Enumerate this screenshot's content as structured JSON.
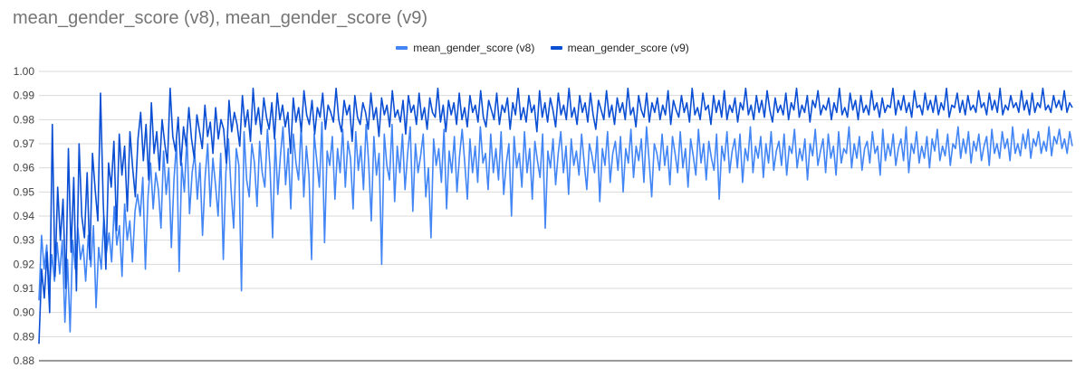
{
  "chart_data": {
    "type": "line",
    "title": "mean_gender_score (v8), mean_gender_score (v9)",
    "xlabel": "",
    "ylabel": "",
    "ylim": [
      0.88,
      1.0
    ],
    "yticks": [
      "1.00",
      "0.99",
      "0.98",
      "0.97",
      "0.96",
      "0.95",
      "0.94",
      "0.93",
      "0.92",
      "0.91",
      "0.90",
      "0.89",
      "0.88"
    ],
    "grid": true,
    "legend_position": "top-center",
    "n_points": 400,
    "series": [
      {
        "name": "mean_gender_score (v8)",
        "color": "#4285f4",
        "values": [
          0.905,
          0.932,
          0.918,
          0.928,
          0.91,
          0.924,
          0.913,
          0.929,
          0.916,
          0.93,
          0.896,
          0.922,
          0.892,
          0.93,
          0.918,
          0.935,
          0.922,
          0.928,
          0.913,
          0.932,
          0.919,
          0.936,
          0.902,
          0.927,
          0.918,
          0.94,
          0.925,
          0.933,
          0.921,
          0.944,
          0.928,
          0.936,
          0.915,
          0.945,
          0.93,
          0.938,
          0.921,
          0.942,
          0.949,
          0.94,
          0.956,
          0.918,
          0.948,
          0.962,
          0.943,
          0.958,
          0.951,
          0.935,
          0.967,
          0.949,
          0.96,
          0.927,
          0.955,
          0.971,
          0.917,
          0.962,
          0.95,
          0.973,
          0.941,
          0.958,
          0.966,
          0.947,
          0.962,
          0.932,
          0.956,
          0.97,
          0.944,
          0.964,
          0.953,
          0.94,
          0.966,
          0.922,
          0.958,
          0.972,
          0.951,
          0.935,
          0.968,
          0.961,
          0.909,
          0.975,
          0.955,
          0.948,
          0.97,
          0.962,
          0.944,
          0.971,
          0.958,
          0.952,
          0.976,
          0.96,
          0.931,
          0.972,
          0.949,
          0.965,
          0.977,
          0.953,
          0.968,
          0.943,
          0.974,
          0.962,
          0.955,
          0.978,
          0.948,
          0.969,
          0.957,
          0.922,
          0.974,
          0.963,
          0.952,
          0.979,
          0.929,
          0.967,
          0.961,
          0.973,
          0.947,
          0.968,
          0.958,
          0.976,
          0.952,
          0.971,
          0.964,
          0.943,
          0.975,
          0.959,
          0.969,
          0.951,
          0.978,
          0.962,
          0.938,
          0.973,
          0.957,
          0.966,
          0.92,
          0.974,
          0.961,
          0.955,
          0.978,
          0.946,
          0.969,
          0.958,
          0.974,
          0.951,
          0.966,
          0.977,
          0.942,
          0.97,
          0.958,
          0.965,
          0.974,
          0.948,
          0.96,
          0.931,
          0.972,
          0.961,
          0.968,
          0.954,
          0.976,
          0.943,
          0.967,
          0.958,
          0.973,
          0.95,
          0.965,
          0.976,
          0.962,
          0.947,
          0.972,
          0.958,
          0.969,
          0.954,
          0.977,
          0.962,
          0.966,
          0.951,
          0.974,
          0.958,
          0.968,
          0.955,
          0.975,
          0.949,
          0.962,
          0.97,
          0.94,
          0.973,
          0.96,
          0.966,
          0.952,
          0.975,
          0.958,
          0.968,
          0.947,
          0.971,
          0.963,
          0.956,
          0.974,
          0.935,
          0.967,
          0.96,
          0.972,
          0.953,
          0.966,
          0.975,
          0.958,
          0.969,
          0.949,
          0.972,
          0.961,
          0.967,
          0.957,
          0.974,
          0.962,
          0.951,
          0.97,
          0.965,
          0.958,
          0.973,
          0.946,
          0.968,
          0.961,
          0.975,
          0.954,
          0.966,
          0.971,
          0.959,
          0.973,
          0.95,
          0.968,
          0.962,
          0.976,
          0.956,
          0.969,
          0.963,
          0.972,
          0.954,
          0.977,
          0.963,
          0.948,
          0.97,
          0.966,
          0.959,
          0.974,
          0.961,
          0.969,
          0.953,
          0.973,
          0.966,
          0.958,
          0.975,
          0.96,
          0.968,
          0.952,
          0.972,
          0.965,
          0.957,
          0.976,
          0.962,
          0.97,
          0.955,
          0.971,
          0.964,
          0.959,
          0.974,
          0.947,
          0.969,
          0.963,
          0.975,
          0.958,
          0.967,
          0.972,
          0.96,
          0.974,
          0.954,
          0.968,
          0.963,
          0.977,
          0.958,
          0.969,
          0.964,
          0.973,
          0.956,
          0.97,
          0.962,
          0.975,
          0.959,
          0.967,
          0.971,
          0.961,
          0.974,
          0.957,
          0.969,
          0.966,
          0.976,
          0.96,
          0.968,
          0.963,
          0.972,
          0.955,
          0.97,
          0.965,
          0.976,
          0.961,
          0.967,
          0.972,
          0.958,
          0.974,
          0.964,
          0.969,
          0.957,
          0.975,
          0.962,
          0.968,
          0.966,
          0.977,
          0.96,
          0.97,
          0.964,
          0.973,
          0.959,
          0.968,
          0.971,
          0.962,
          0.975,
          0.966,
          0.969,
          0.957,
          0.976,
          0.963,
          0.97,
          0.965,
          0.974,
          0.961,
          0.968,
          0.972,
          0.963,
          0.977,
          0.958,
          0.97,
          0.966,
          0.975,
          0.962,
          0.969,
          0.964,
          0.973,
          0.96,
          0.972,
          0.967,
          0.976,
          0.963,
          0.969,
          0.965,
          0.974,
          0.961,
          0.97,
          0.968,
          0.977,
          0.964,
          0.972,
          0.966,
          0.975,
          0.962,
          0.971,
          0.967,
          0.974,
          0.963,
          0.969,
          0.973,
          0.961,
          0.976,
          0.966,
          0.97,
          0.964,
          0.975,
          0.968,
          0.972,
          0.963,
          0.977,
          0.966,
          0.97,
          0.965,
          0.974,
          0.968,
          0.976,
          0.964,
          0.972,
          0.969,
          0.975,
          0.966,
          0.971,
          0.967,
          0.977,
          0.965,
          0.973,
          0.97,
          0.976,
          0.968,
          0.972,
          0.966,
          0.975,
          0.969
        ]
      },
      {
        "name": "mean_gender_score (v9)",
        "color": "#0b4fd4",
        "values": [
          0.887,
          0.918,
          0.906,
          0.925,
          0.9,
          0.978,
          0.915,
          0.952,
          0.93,
          0.947,
          0.91,
          0.968,
          0.925,
          0.956,
          0.909,
          0.97,
          0.94,
          0.931,
          0.958,
          0.922,
          0.966,
          0.951,
          0.938,
          0.991,
          0.946,
          0.918,
          0.962,
          0.952,
          0.971,
          0.934,
          0.974,
          0.957,
          0.969,
          0.942,
          0.975,
          0.96,
          0.948,
          0.972,
          0.983,
          0.963,
          0.978,
          0.955,
          0.987,
          0.966,
          0.975,
          0.959,
          0.98,
          0.97,
          0.962,
          0.993,
          0.973,
          0.967,
          0.981,
          0.961,
          0.977,
          0.969,
          0.985,
          0.972,
          0.964,
          0.982,
          0.975,
          0.968,
          0.986,
          0.973,
          0.979,
          0.966,
          0.985,
          0.972,
          0.98,
          0.976,
          0.962,
          0.988,
          0.975,
          0.983,
          0.978,
          0.969,
          0.99,
          0.977,
          0.984,
          0.971,
          0.993,
          0.978,
          0.985,
          0.974,
          0.989,
          0.981,
          0.976,
          0.987,
          0.972,
          0.991,
          0.98,
          0.986,
          0.977,
          0.983,
          0.966,
          0.989,
          0.979,
          0.985,
          0.975,
          0.992,
          0.982,
          0.978,
          0.988,
          0.974,
          0.985,
          0.981,
          0.991,
          0.976,
          0.986,
          0.983,
          0.979,
          0.993,
          0.98,
          0.975,
          0.988,
          0.982,
          0.986,
          0.971,
          0.99,
          0.981,
          0.978,
          0.987,
          0.983,
          0.976,
          0.991,
          0.98,
          0.985,
          0.973,
          0.989,
          0.982,
          0.986,
          0.977,
          0.992,
          0.981,
          0.984,
          0.979,
          0.988,
          0.974,
          0.99,
          0.983,
          0.986,
          0.978,
          0.991,
          0.98,
          0.985,
          0.976,
          0.989,
          0.983,
          0.981,
          0.993,
          0.979,
          0.986,
          0.975,
          0.988,
          0.982,
          0.987,
          0.978,
          0.991,
          0.98,
          0.985,
          0.977,
          0.99,
          0.983,
          0.986,
          0.979,
          0.992,
          0.981,
          0.977,
          0.988,
          0.984,
          0.98,
          0.991,
          0.978,
          0.986,
          0.983,
          0.989,
          0.976,
          0.987,
          0.982,
          0.993,
          0.98,
          0.985,
          0.979,
          0.99,
          0.983,
          0.986,
          0.975,
          0.992,
          0.981,
          0.987,
          0.979,
          0.989,
          0.984,
          0.977,
          0.991,
          0.982,
          0.986,
          0.98,
          0.993,
          0.981,
          0.985,
          0.978,
          0.99,
          0.983,
          0.987,
          0.979,
          0.991,
          0.982,
          0.976,
          0.988,
          0.984,
          0.98,
          0.992,
          0.981,
          0.986,
          0.978,
          0.989,
          0.983,
          0.987,
          0.98,
          0.993,
          0.982,
          0.985,
          0.977,
          0.99,
          0.984,
          0.981,
          0.991,
          0.979,
          0.987,
          0.983,
          0.989,
          0.98,
          0.986,
          0.982,
          0.992,
          0.978,
          0.988,
          0.984,
          0.981,
          0.99,
          0.983,
          0.987,
          0.979,
          0.993,
          0.982,
          0.985,
          0.98,
          0.991,
          0.984,
          0.986,
          0.978,
          0.99,
          0.983,
          0.988,
          0.981,
          0.992,
          0.98,
          0.986,
          0.983,
          0.989,
          0.979,
          0.987,
          0.984,
          0.993,
          0.982,
          0.986,
          0.98,
          0.99,
          0.983,
          0.988,
          0.981,
          0.992,
          0.984,
          0.979,
          0.989,
          0.983,
          0.986,
          0.982,
          0.991,
          0.98,
          0.987,
          0.984,
          0.993,
          0.981,
          0.986,
          0.983,
          0.99,
          0.979,
          0.988,
          0.985,
          0.992,
          0.982,
          0.986,
          0.984,
          0.989,
          0.98,
          0.987,
          0.983,
          0.993,
          0.982,
          0.985,
          0.981,
          0.991,
          0.984,
          0.988,
          0.98,
          0.99,
          0.983,
          0.986,
          0.982,
          0.992,
          0.984,
          0.987,
          0.981,
          0.989,
          0.983,
          0.986,
          0.985,
          0.993,
          0.982,
          0.988,
          0.984,
          0.99,
          0.983,
          0.987,
          0.981,
          0.992,
          0.985,
          0.986,
          0.982,
          0.991,
          0.984,
          0.988,
          0.983,
          0.99,
          0.982,
          0.987,
          0.984,
          0.993,
          0.981,
          0.986,
          0.985,
          0.991,
          0.983,
          0.988,
          0.982,
          0.99,
          0.984,
          0.986,
          0.983,
          0.992,
          0.985,
          0.987,
          0.982,
          0.991,
          0.984,
          0.988,
          0.983,
          0.993,
          0.982,
          0.986,
          0.984,
          0.99,
          0.985,
          0.987,
          0.983,
          0.992,
          0.984,
          0.988,
          0.982,
          0.991,
          0.983,
          0.987,
          0.985,
          0.993,
          0.984,
          0.986,
          0.983,
          0.99,
          0.985,
          0.988,
          0.984,
          0.992,
          0.983,
          0.987,
          0.985
        ]
      }
    ]
  }
}
